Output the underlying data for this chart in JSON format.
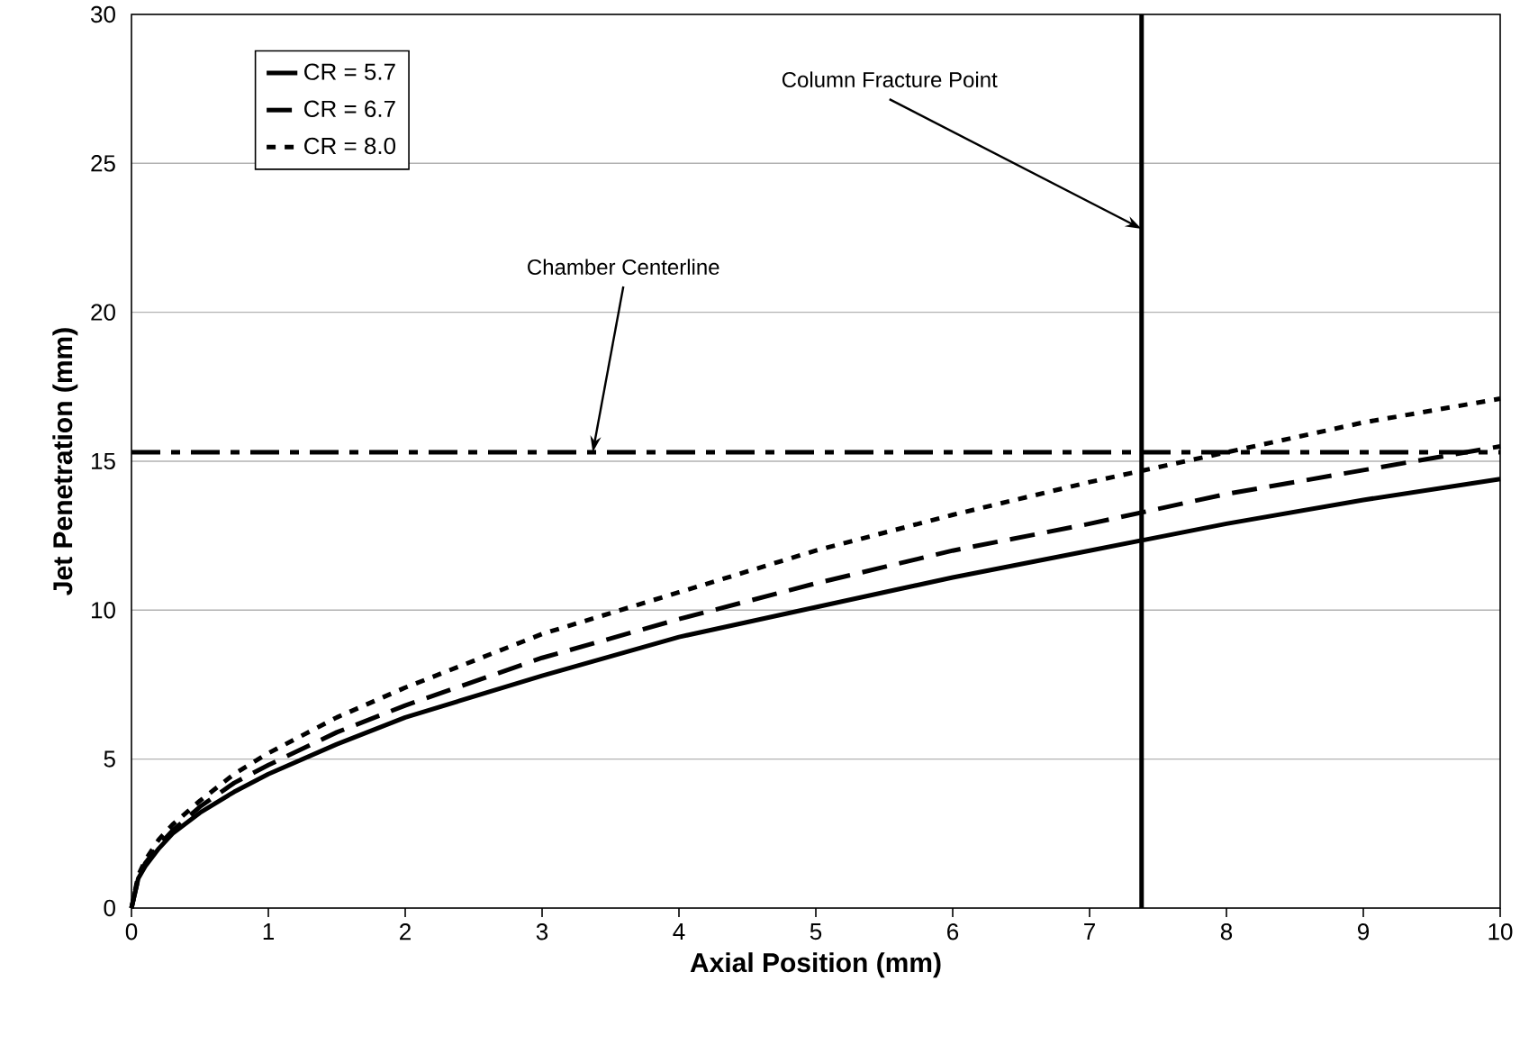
{
  "chart_data": {
    "type": "line",
    "xlabel": "Axial Position (mm)",
    "ylabel": "Jet Penetration (mm)",
    "x": [
      0,
      0.05,
      0.1,
      0.2,
      0.3,
      0.5,
      0.75,
      1,
      1.5,
      2,
      3,
      4,
      5,
      6,
      7,
      8,
      9,
      10
    ],
    "series": [
      {
        "name": "CR = 5.7",
        "color": "#000000",
        "line_style": "solid",
        "values": [
          0,
          1.0,
          1.4,
          2.0,
          2.5,
          3.2,
          3.9,
          4.5,
          5.5,
          6.4,
          7.8,
          9.1,
          10.1,
          11.1,
          12.0,
          12.9,
          13.7,
          14.4
        ]
      },
      {
        "name": "CR = 6.7",
        "color": "#000000",
        "line_style": "dashed",
        "values": [
          0,
          1.0,
          1.5,
          2.1,
          2.6,
          3.4,
          4.2,
          4.8,
          5.9,
          6.8,
          8.4,
          9.7,
          10.9,
          12.0,
          12.9,
          13.9,
          14.7,
          15.5
        ]
      },
      {
        "name": "CR = 8.0",
        "color": "#000000",
        "line_style": "dotted",
        "values": [
          0,
          1.1,
          1.6,
          2.3,
          2.8,
          3.6,
          4.5,
          5.2,
          6.4,
          7.4,
          9.2,
          10.6,
          12.0,
          13.2,
          14.3,
          15.3,
          16.3,
          17.1
        ]
      }
    ],
    "xlim": [
      0,
      10
    ],
    "xticks": [
      0,
      1,
      2,
      3,
      4,
      5,
      6,
      7,
      8,
      9,
      10
    ],
    "ylim": [
      0,
      30
    ],
    "yticks": [
      0,
      5,
      10,
      15,
      20,
      25,
      30
    ],
    "grid": "y",
    "legend": "top left",
    "ref_lines": [
      {
        "axis": "x",
        "value": 7.38,
        "color": "#000000",
        "line_style": "solid"
      },
      {
        "axis": "y",
        "value": 15.3,
        "color": "#000000",
        "line_style": "dashdot"
      }
    ],
    "annotations": [
      {
        "text": "Column Fracture Point",
        "x": 7.38,
        "y": 22.8
      },
      {
        "text": "Chamber Centerline",
        "x": 3.37,
        "y": 15.3
      }
    ]
  }
}
